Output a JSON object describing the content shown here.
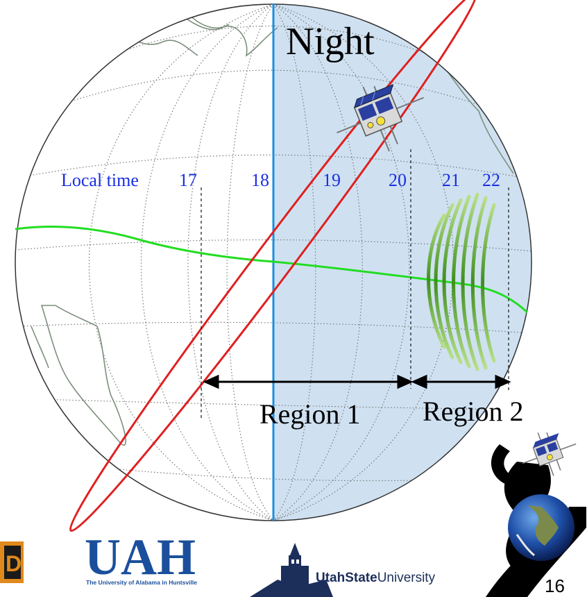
{
  "labels": {
    "night": "Night",
    "local_time_label": "Local time",
    "region_1": "Region 1",
    "region_2": "Region 2",
    "page_number": "16"
  },
  "local_time_ticks": [
    "17",
    "18",
    "19",
    "20",
    "21",
    "22"
  ],
  "logos": {
    "uah_text": "UAH",
    "uah_subtitle": "The University of Alabama in Huntsville",
    "usu_text_bold": "UtahState",
    "usu_text_regular": "University",
    "left_logo_letter": "D"
  },
  "colors": {
    "night_shade": "#cfe1f1",
    "terminator": "#1a8fe0",
    "orbit": "#e02020",
    "equator": "#22dd22",
    "local_time_text": "#1a2ee0",
    "arrows": "#000000",
    "uah_blue": "#1b4f9c",
    "usu_navy": "#1c2e5a",
    "coast": "#7c8f7c"
  },
  "icons": [
    "satellite-icon",
    "mission-logo-icon",
    "earth-icon"
  ]
}
